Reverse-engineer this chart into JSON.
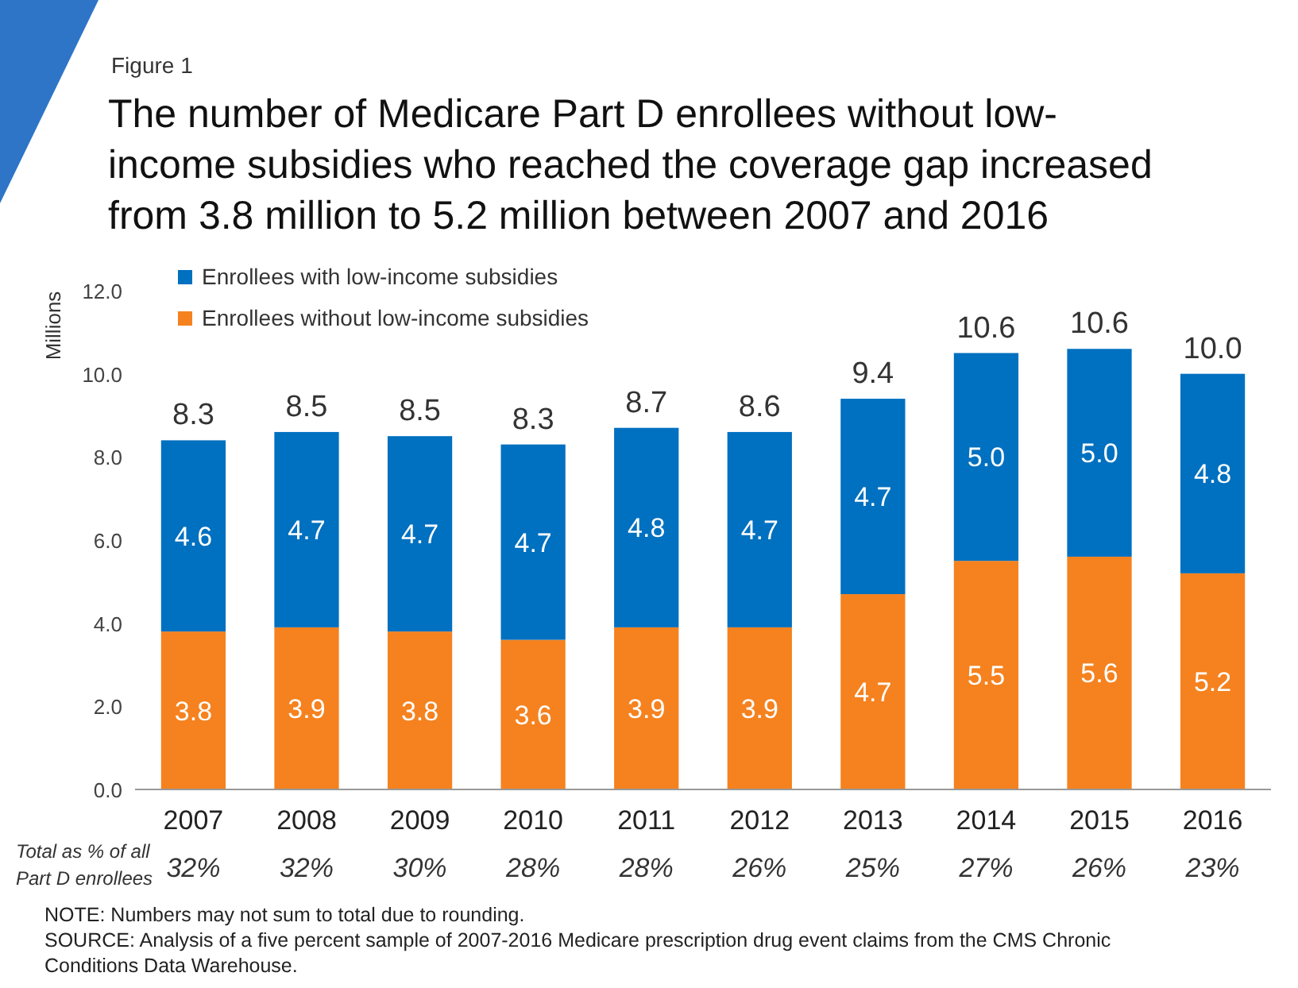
{
  "chart_data": {
    "type": "bar",
    "title": "The number of Medicare Part D enrollees without low-income subsidies who reached the coverage gap increased from 3.8 million to 5.2 million between 2007 and 2016",
    "ylabel": "Millions",
    "categories": [
      "2007",
      "2008",
      "2009",
      "2010",
      "2011",
      "2012",
      "2013",
      "2014",
      "2015",
      "2016"
    ],
    "series": [
      {
        "name": "Enrollees without low-income subsidies",
        "color": "#f5821f",
        "values": [
          3.8,
          3.9,
          3.8,
          3.6,
          3.9,
          3.9,
          4.7,
          5.5,
          5.6,
          5.2
        ],
        "value_labels": [
          "3.8",
          "3.9",
          "3.8",
          "3.6",
          "3.9",
          "3.9",
          "4.7",
          "5.5",
          "5.6",
          "5.2"
        ]
      },
      {
        "name": "Enrollees with low-income subsidies",
        "color": "#0070c0",
        "values": [
          4.6,
          4.7,
          4.7,
          4.7,
          4.8,
          4.7,
          4.7,
          5.0,
          5.0,
          4.8
        ],
        "value_labels": [
          "4.6",
          "4.7",
          "4.7",
          "4.7",
          "4.8",
          "4.7",
          "4.7",
          "5.0",
          "5.0",
          "4.8"
        ]
      }
    ],
    "stacked": true,
    "totals": [
      "8.3",
      "8.5",
      "8.5",
      "8.3",
      "8.7",
      "8.6",
      "9.4",
      "10.6",
      "10.6",
      "10.0"
    ],
    "ylim": [
      0,
      12
    ],
    "yticks": [
      {
        "value": 0,
        "label": "0.0"
      },
      {
        "value": 2,
        "label": "2.0"
      },
      {
        "value": 4,
        "label": "4.0"
      },
      {
        "value": 6,
        "label": "6.0"
      },
      {
        "value": 8,
        "label": "8.0"
      },
      {
        "value": 10,
        "label": "10.0"
      },
      {
        "value": 12,
        "label": "12.0"
      }
    ],
    "grid": false,
    "legend": "top left",
    "annotations": [
      "Figure 1",
      "Total as % of all Part D enrollees",
      "32%",
      "32%",
      "30%",
      "28%",
      "28%",
      "26%",
      "25%",
      "27%",
      "26%",
      "23%",
      "NOTE: Numbers may not sum to total due to rounding.",
      "SOURCE: Analysis of a five percent sample of 2007-2016 Medicare prescription drug event claims from the CMS Chronic Conditions Data Warehouse."
    ]
  }
}
